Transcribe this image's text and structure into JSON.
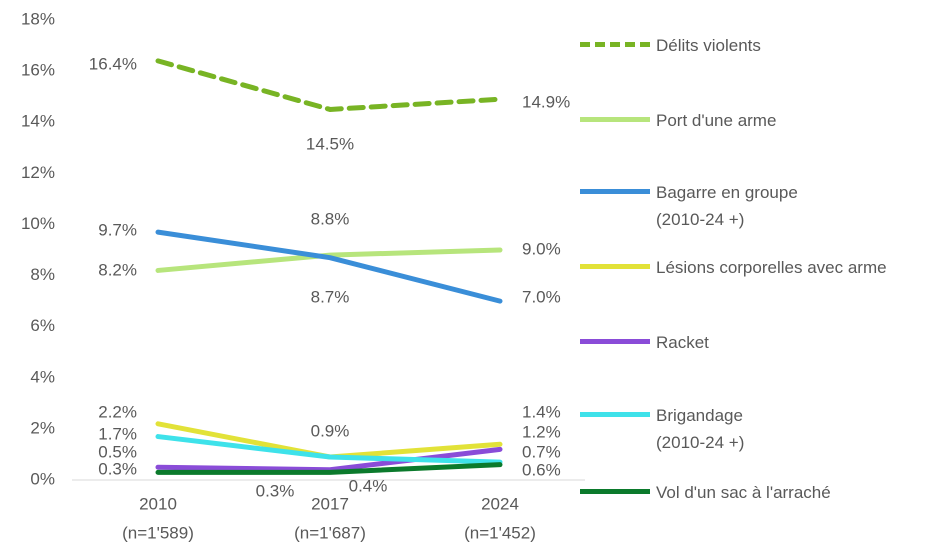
{
  "chart_data": {
    "type": "line",
    "categories": [
      "2010",
      "2017",
      "2024"
    ],
    "category_subtitles": [
      "(n=1'589)",
      "(n=1'687)",
      "(n=1'452)"
    ],
    "ylim": [
      0,
      18
    ],
    "yticks": [
      {
        "value": 0,
        "label": "0%"
      },
      {
        "value": 2,
        "label": "2%"
      },
      {
        "value": 4,
        "label": "4%"
      },
      {
        "value": 6,
        "label": "6%"
      },
      {
        "value": 8,
        "label": "8%"
      },
      {
        "value": 10,
        "label": "10%"
      },
      {
        "value": 12,
        "label": "12%"
      },
      {
        "value": 14,
        "label": "14%"
      },
      {
        "value": 16,
        "label": "16%"
      },
      {
        "value": 18,
        "label": "18%"
      }
    ],
    "legend": "right",
    "series": [
      {
        "name": "Délits violents",
        "color": "#78b424",
        "dashed": true,
        "values": [
          16.4,
          14.5,
          14.9
        ],
        "value_labels": [
          "16.4%",
          "14.5%",
          "14.9%"
        ]
      },
      {
        "name": "Port d'une arme",
        "color": "#b7e57c",
        "values": [
          8.2,
          8.8,
          9.0
        ],
        "value_labels": [
          "8.2%",
          "8.8%",
          "9.0%"
        ]
      },
      {
        "name": "Bagarre en groupe\n(2010-24 +)",
        "color": "#3a8ed8",
        "values": [
          9.7,
          8.7,
          7.0
        ],
        "value_labels": [
          "9.7%",
          "8.7%",
          "7.0%"
        ]
      },
      {
        "name": "Lésions corporelles avec arme",
        "color": "#e2e238",
        "values": [
          2.2,
          0.9,
          1.4
        ],
        "value_labels": [
          "2.2%",
          "0.9%",
          "1.4%"
        ]
      },
      {
        "name": "Racket",
        "color": "#8a4cd8",
        "values": [
          0.5,
          0.4,
          1.2
        ],
        "value_labels": [
          "0.5%",
          "0.4%",
          "1.2%"
        ]
      },
      {
        "name": "Brigandage\n(2010-24 +)",
        "color": "#3ee2ea",
        "values": [
          1.7,
          0.9,
          0.7
        ],
        "value_labels": [
          "1.7%",
          null,
          "0.7%"
        ]
      },
      {
        "name": "Vol d'un sac à l'arraché",
        "color": "#0b7a2c",
        "values": [
          0.3,
          0.3,
          0.6
        ],
        "value_labels": [
          "0.3%",
          "0.3%",
          "0.6%"
        ]
      }
    ]
  }
}
